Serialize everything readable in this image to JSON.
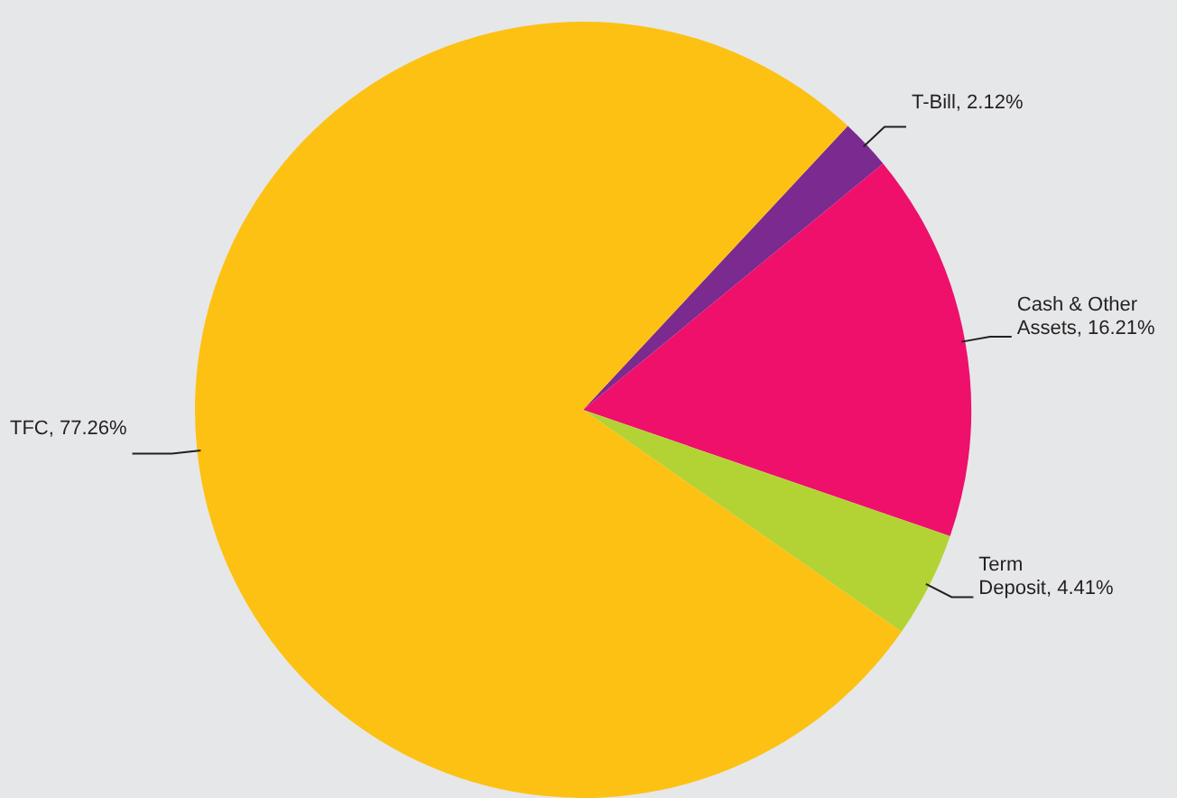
{
  "chart_data": {
    "type": "pie",
    "categories": [
      "T-Bill",
      "Cash & Other Assets",
      "Term Deposit",
      "TFC"
    ],
    "values": [
      2.12,
      16.21,
      4.41,
      77.26
    ],
    "colors": [
      "#7b2a8f",
      "#ee106b",
      "#b3d334",
      "#fdc113"
    ],
    "value_labels": [
      "2.12%",
      "16.21%",
      "4.41%",
      "77.26%"
    ]
  }
}
